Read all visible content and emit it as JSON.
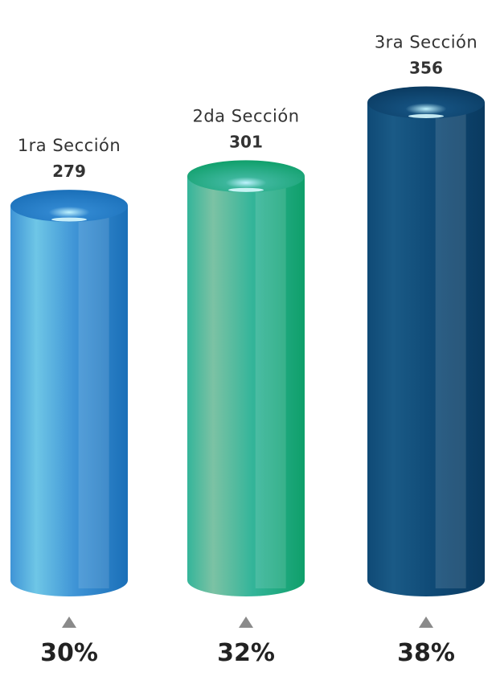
{
  "chart_data": {
    "type": "bar",
    "style": "3d-cylinder",
    "categories": [
      "1ra Sección",
      "2da Sección",
      "3ra Sección"
    ],
    "values": [
      279,
      301,
      356
    ],
    "percentages": [
      "30%",
      "32%",
      "38%"
    ],
    "value_labels": [
      "279",
      "301",
      "356"
    ],
    "title": "",
    "xlabel": "",
    "ylabel": "",
    "grid": false,
    "legend": "none",
    "colors": [
      {
        "light": "#6ec6e6",
        "mid": "#3f94d6",
        "dark": "#1a6fb8",
        "top": "#2f86cf"
      },
      {
        "light": "#7cc2a4",
        "mid": "#34b59a",
        "dark": "#0f9f6a",
        "top": "#3cb69c"
      },
      {
        "light": "#1a5a86",
        "mid": "#0f4a76",
        "dark": "#0a3a60",
        "top": "#14507e"
      }
    ],
    "arrow_icon": "triangle-up-icon",
    "text_color_label": "#333333",
    "text_color_value": "#333333",
    "arrow_color": "#8a8a8a"
  }
}
